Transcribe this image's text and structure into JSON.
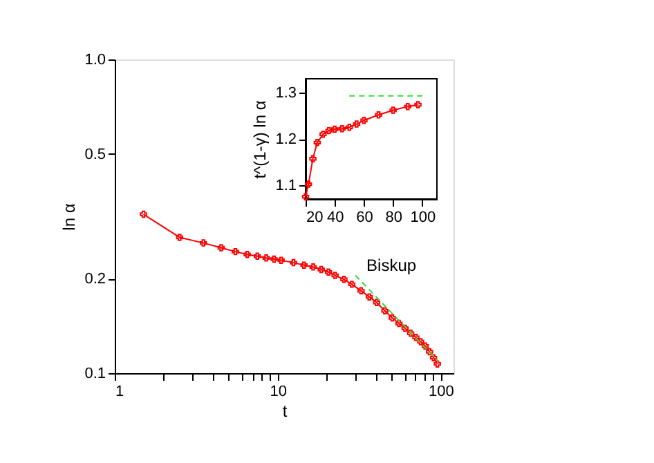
{
  "chart_data": [
    {
      "type": "line",
      "xlabel": "t",
      "ylabel": "ln α",
      "log": "xy",
      "xlim": [
        1,
        120
      ],
      "xticks": [
        1,
        {
          "value": 2,
          "label": null
        },
        {
          "value": 3,
          "label": null
        },
        {
          "value": 4,
          "label": null
        },
        {
          "value": 5,
          "label": null
        },
        {
          "value": 6,
          "label": null
        },
        {
          "value": 7,
          "label": null
        },
        {
          "value": 8,
          "label": null
        },
        {
          "value": 9,
          "label": null
        },
        10,
        {
          "value": 20,
          "label": null
        },
        {
          "value": 30,
          "label": null
        },
        {
          "value": 40,
          "label": null
        },
        {
          "value": 50,
          "label": null
        },
        {
          "value": 60,
          "label": null
        },
        {
          "value": 70,
          "label": null
        },
        {
          "value": 80,
          "label": null
        },
        {
          "value": 90,
          "label": null
        },
        100
      ],
      "ylim": [
        0.1,
        1
      ],
      "yticks": [
        0.1,
        0.2,
        0.5,
        {
          "value": 1,
          "label": "1.0"
        }
      ],
      "series": [
        {
          "color": "#ff0000",
          "marker": "cross",
          "x": [
            1.5,
            2.5,
            3.5,
            4.5,
            5.5,
            6.5,
            7.5,
            8.5,
            9.5,
            10.5,
            12.5,
            14.5,
            16.5,
            18.5,
            20.5,
            22.5,
            25.5,
            28.5,
            32.5,
            36.5,
            40.5,
            45.5,
            50.5,
            55.5,
            60.5,
            65.5,
            70.5,
            75.5,
            80.5,
            85.5,
            90.5,
            95.5
          ],
          "values": [
            0.321,
            0.271,
            0.26,
            0.251,
            0.244,
            0.239,
            0.236,
            0.233,
            0.231,
            0.229,
            0.225,
            0.221,
            0.218,
            0.214,
            0.21,
            0.205,
            0.199,
            0.192,
            0.183,
            0.175,
            0.168,
            0.158,
            0.15,
            0.144,
            0.139,
            0.134,
            0.13,
            0.126,
            0.122,
            0.117,
            0.112,
            0.107
          ]
        },
        {
          "name": "Biskup",
          "color": "#33dd33",
          "line_style": "dashed",
          "x": [
            30,
            97
          ],
          "values": [
            0.205,
            0.109
          ]
        }
      ]
    },
    {
      "type": "line",
      "ylabel": "t^(1-γ) ln α",
      "xlim": [
        20,
        110
      ],
      "xticks": [
        20,
        40,
        60,
        80,
        100
      ],
      "ylim": [
        1.07,
        1.33
      ],
      "yticks": [
        1.1,
        1.2,
        1.3
      ],
      "series": [
        {
          "color": "#ff0000",
          "marker": "cross",
          "x": [
            20,
            22,
            25,
            28,
            32,
            36,
            40,
            45,
            50,
            55,
            60,
            70,
            80,
            90,
            97
          ],
          "values": [
            1.075,
            1.102,
            1.157,
            1.192,
            1.21,
            1.218,
            1.221,
            1.222,
            1.225,
            1.232,
            1.24,
            1.252,
            1.262,
            1.27,
            1.274
          ]
        },
        {
          "color": "#33dd33",
          "line_style": "dashed",
          "x": [
            50,
            100
          ],
          "values": [
            1.293,
            1.293
          ]
        }
      ]
    }
  ]
}
